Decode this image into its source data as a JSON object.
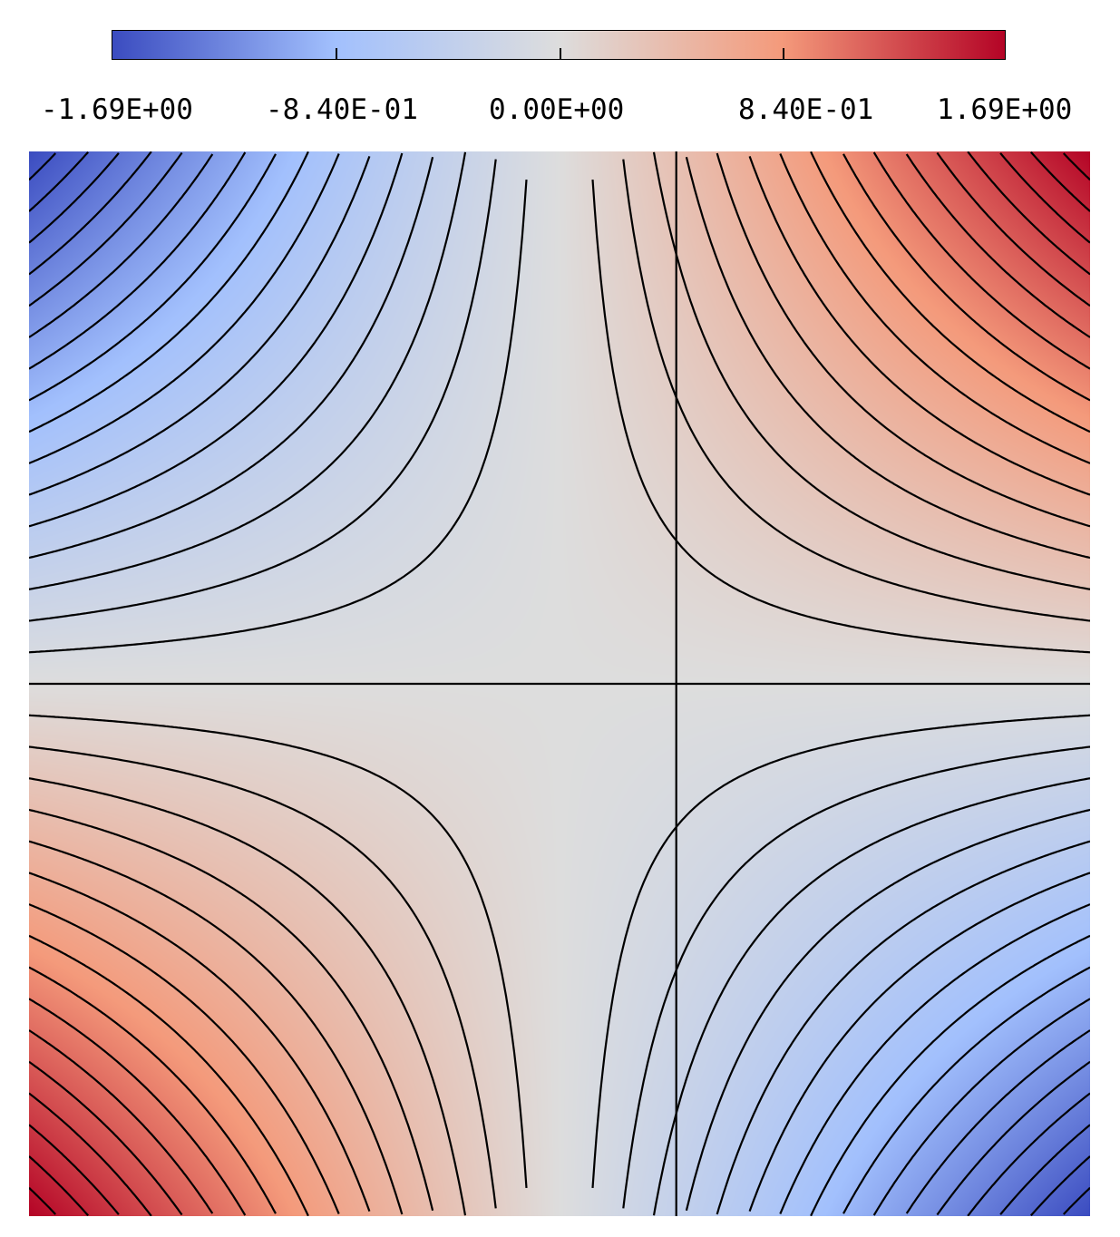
{
  "colorbar": {
    "tick_labels": [
      "-1.69E+00",
      "-8.40E-01",
      "0.00E+00",
      "8.40E-01",
      "1.69E+00"
    ],
    "min": -1.69,
    "max": 1.69,
    "colormap": "coolwarm",
    "colors": {
      "low": "#3b4cc0",
      "lowmid": "#a2c0fd",
      "mid": "#dddddd",
      "highmid": "#f49a7b",
      "high": "#b40426"
    }
  },
  "chart_data": {
    "type": "heatmap",
    "title": "",
    "xlabel": "",
    "ylabel": "",
    "value_range": [
      -1.69,
      1.69
    ],
    "colorbar_ticks": [
      -1.69,
      -0.84,
      0.0,
      0.84,
      1.69
    ],
    "field": {
      "description_function": "f = c * x * y",
      "x_range": [
        -1,
        1
      ],
      "y_range": [
        -1,
        1
      ],
      "corner_values": {
        "top_left": -1.69,
        "top_right": 1.69,
        "bottom_left": 1.69,
        "bottom_right": -1.69
      }
    },
    "contour_levels": [
      -1.6,
      -1.5,
      -1.4,
      -1.3,
      -1.2,
      -1.1,
      -1.0,
      -0.9,
      -0.8,
      -0.7,
      -0.6,
      -0.5,
      -0.4,
      -0.3,
      -0.2,
      -0.1,
      0.0,
      0.1,
      0.2,
      0.3,
      0.4,
      0.5,
      0.6,
      0.7,
      0.8,
      0.9,
      1.0,
      1.1,
      1.2,
      1.3,
      1.4,
      1.5,
      1.6
    ],
    "contour_color": "#000000"
  }
}
